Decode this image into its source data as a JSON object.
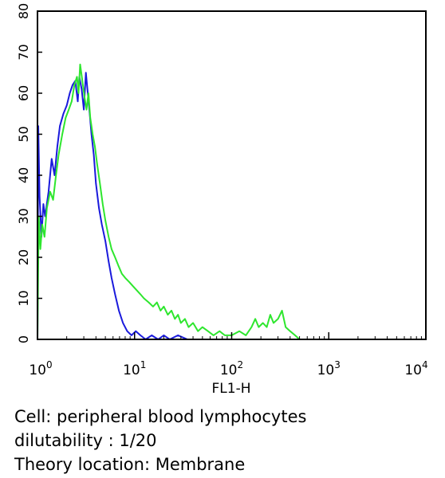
{
  "chart_data": {
    "type": "line",
    "xlabel": "FL1-H",
    "ylabel": "",
    "x_scale": "log",
    "xlim": [
      1,
      10000
    ],
    "ylim": [
      0,
      80
    ],
    "x_ticks": [
      {
        "base": "10",
        "exp": "0",
        "value": 1
      },
      {
        "base": "10",
        "exp": "1",
        "value": 10
      },
      {
        "base": "10",
        "exp": "2",
        "value": 100
      },
      {
        "base": "10",
        "exp": "3",
        "value": 1000
      },
      {
        "base": "10",
        "exp": "4",
        "value": 10000
      }
    ],
    "y_ticks": [
      "0",
      "10",
      "20",
      "30",
      "40",
      "50",
      "60",
      "70",
      "80"
    ],
    "grid": false,
    "series": [
      {
        "color": "#1a1adc",
        "points": [
          [
            1.0,
            0
          ],
          [
            1.02,
            52
          ],
          [
            1.05,
            35
          ],
          [
            1.1,
            25
          ],
          [
            1.15,
            33
          ],
          [
            1.2,
            30
          ],
          [
            1.3,
            36
          ],
          [
            1.4,
            44
          ],
          [
            1.5,
            40
          ],
          [
            1.6,
            47
          ],
          [
            1.7,
            52
          ],
          [
            1.85,
            55
          ],
          [
            2.0,
            57
          ],
          [
            2.15,
            60
          ],
          [
            2.3,
            62
          ],
          [
            2.45,
            63
          ],
          [
            2.6,
            58
          ],
          [
            2.7,
            64
          ],
          [
            2.85,
            61
          ],
          [
            3.0,
            56
          ],
          [
            3.15,
            65
          ],
          [
            3.3,
            60
          ],
          [
            3.45,
            55
          ],
          [
            3.6,
            50
          ],
          [
            3.8,
            45
          ],
          [
            4.0,
            38
          ],
          [
            4.3,
            32
          ],
          [
            4.6,
            28
          ],
          [
            5.0,
            24
          ],
          [
            5.4,
            19
          ],
          [
            5.8,
            15
          ],
          [
            6.3,
            11
          ],
          [
            6.9,
            7
          ],
          [
            7.6,
            4
          ],
          [
            8.4,
            2
          ],
          [
            9.3,
            1
          ],
          [
            10.3,
            2
          ],
          [
            11.5,
            1
          ],
          [
            13.0,
            0
          ],
          [
            15.0,
            1
          ],
          [
            17.5,
            0
          ],
          [
            20.0,
            1
          ],
          [
            23.0,
            0
          ],
          [
            28.0,
            1
          ],
          [
            35.0,
            0
          ],
          [
            10000,
            0
          ]
        ]
      },
      {
        "color": "#2ee62e",
        "points": [
          [
            1.0,
            0
          ],
          [
            1.03,
            30
          ],
          [
            1.07,
            22
          ],
          [
            1.12,
            28
          ],
          [
            1.18,
            25
          ],
          [
            1.25,
            32
          ],
          [
            1.35,
            36
          ],
          [
            1.45,
            34
          ],
          [
            1.55,
            40
          ],
          [
            1.65,
            45
          ],
          [
            1.8,
            50
          ],
          [
            1.95,
            54
          ],
          [
            2.1,
            56
          ],
          [
            2.25,
            58
          ],
          [
            2.4,
            62
          ],
          [
            2.55,
            64
          ],
          [
            2.65,
            60
          ],
          [
            2.75,
            67
          ],
          [
            2.9,
            63
          ],
          [
            3.05,
            59
          ],
          [
            3.2,
            56
          ],
          [
            3.35,
            60
          ],
          [
            3.5,
            54
          ],
          [
            3.7,
            50
          ],
          [
            3.9,
            47
          ],
          [
            4.1,
            43
          ],
          [
            4.4,
            38
          ],
          [
            4.7,
            33
          ],
          [
            5.0,
            29
          ],
          [
            5.4,
            25
          ],
          [
            5.8,
            22
          ],
          [
            6.3,
            20
          ],
          [
            6.8,
            18
          ],
          [
            7.4,
            16
          ],
          [
            8.0,
            15
          ],
          [
            8.8,
            14
          ],
          [
            9.6,
            13
          ],
          [
            10.5,
            12
          ],
          [
            11.5,
            11
          ],
          [
            12.5,
            10
          ],
          [
            14.0,
            9
          ],
          [
            15.5,
            8
          ],
          [
            17.0,
            9
          ],
          [
            18.5,
            7
          ],
          [
            20.0,
            8
          ],
          [
            22.0,
            6
          ],
          [
            24.0,
            7
          ],
          [
            26.0,
            5
          ],
          [
            28.0,
            6
          ],
          [
            30.0,
            4
          ],
          [
            33.0,
            5
          ],
          [
            36.0,
            3
          ],
          [
            40.0,
            4
          ],
          [
            45.0,
            2
          ],
          [
            50.0,
            3
          ],
          [
            57.0,
            2
          ],
          [
            65.0,
            1
          ],
          [
            75.0,
            2
          ],
          [
            85.0,
            1
          ],
          [
            100.0,
            1
          ],
          [
            120.0,
            2
          ],
          [
            140.0,
            1
          ],
          [
            160.0,
            3
          ],
          [
            175.0,
            5
          ],
          [
            190.0,
            3
          ],
          [
            210.0,
            4
          ],
          [
            230.0,
            3
          ],
          [
            250.0,
            6
          ],
          [
            270.0,
            4
          ],
          [
            300.0,
            5
          ],
          [
            330.0,
            7
          ],
          [
            360.0,
            3
          ],
          [
            400.0,
            2
          ],
          [
            450.0,
            1
          ],
          [
            500.0,
            0
          ],
          [
            10000,
            0
          ]
        ]
      }
    ]
  },
  "caption": {
    "line1": "Cell: peripheral blood lymphocytes",
    "line2": "dilutability : 1/20",
    "line3": "Theory location: Membrane"
  }
}
